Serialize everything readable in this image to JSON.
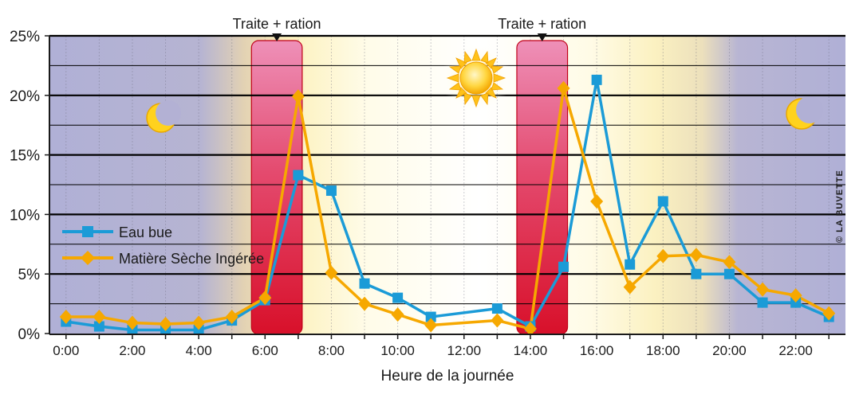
{
  "chart_data": {
    "type": "line",
    "xlabel": "Heure de la journée",
    "ylabel": "",
    "ylim": [
      0,
      25
    ],
    "xlim": [
      -0.5,
      23.5
    ],
    "yticks": [
      0,
      5,
      10,
      15,
      20,
      25
    ],
    "ytick_labels": [
      "0%",
      "5%",
      "10%",
      "15%",
      "20%",
      "25%"
    ],
    "xticks": [
      0,
      2,
      4,
      6,
      8,
      10,
      12,
      14,
      16,
      18,
      20,
      22
    ],
    "xtick_labels": [
      "0:00",
      "2:00",
      "4:00",
      "6:00",
      "8:00",
      "10:00",
      "12:00",
      "14:00",
      "16:00",
      "18:00",
      "20:00",
      "22:00"
    ],
    "grid": "horizontal",
    "legend_position": "left",
    "series": [
      {
        "name": "Eau bue",
        "color": "#1b9bd7",
        "marker": "square",
        "x": [
          0,
          1,
          2,
          3,
          4,
          5,
          6,
          7,
          8,
          9,
          10,
          11,
          13,
          14,
          15,
          16,
          17,
          18,
          19,
          20,
          21,
          22,
          23
        ],
        "values": [
          1.0,
          0.6,
          0.3,
          0.3,
          0.3,
          1.1,
          2.8,
          13.3,
          12.0,
          4.2,
          3.0,
          1.4,
          2.1,
          0.6,
          5.6,
          21.3,
          5.8,
          11.1,
          5.0,
          5.0,
          2.6,
          2.6,
          1.4
        ]
      },
      {
        "name": "Matière Sèche Ingérée",
        "color": "#f6a800",
        "marker": "diamond",
        "x": [
          0,
          1,
          2,
          3,
          4,
          5,
          6,
          7,
          8,
          9,
          10,
          11,
          13,
          14,
          15,
          16,
          17,
          18,
          19,
          20,
          21,
          22,
          23
        ],
        "values": [
          1.4,
          1.4,
          0.9,
          0.8,
          0.9,
          1.4,
          3.0,
          19.9,
          5.1,
          2.5,
          1.6,
          0.7,
          1.1,
          0.4,
          20.6,
          11.1,
          3.9,
          6.5,
          6.6,
          6.0,
          3.7,
          3.2,
          1.7
        ]
      }
    ],
    "annotations": [
      {
        "label": "Traite + ration",
        "x_from": 6.0,
        "x_to": 7.0
      },
      {
        "label": "Traite + ration",
        "x_from": 14.0,
        "x_to": 15.0
      }
    ],
    "credit": "© LA BUVETTE",
    "icons": [
      "moon-icon",
      "sun-icon",
      "moon-icon"
    ]
  }
}
